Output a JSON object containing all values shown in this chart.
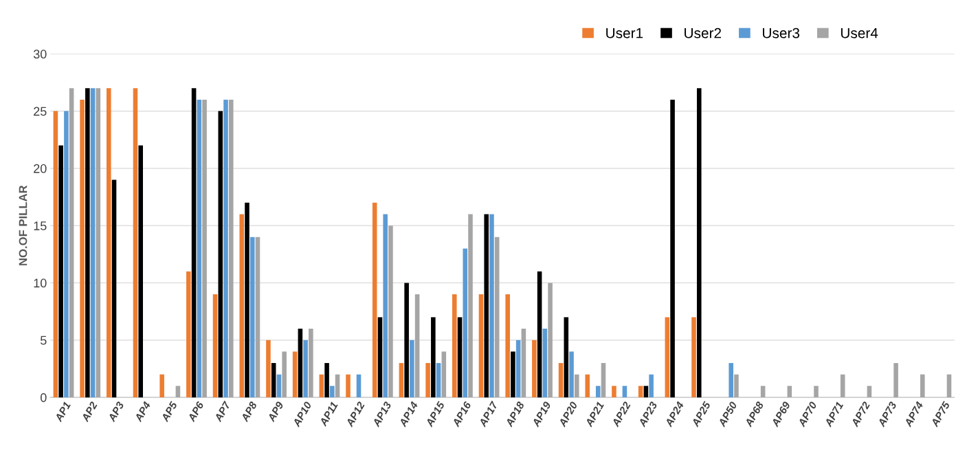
{
  "chart_data": {
    "type": "bar",
    "ylabel": "NO.OF PILLAR",
    "categories": [
      "AP1",
      "AP2",
      "AP3",
      "AP4",
      "AP5",
      "AP6",
      "AP7",
      "AP8",
      "AP9",
      "AP10",
      "AP11",
      "AP12",
      "AP13",
      "AP14",
      "AP15",
      "AP16",
      "AP17",
      "AP18",
      "AP19",
      "AP20",
      "AP21",
      "AP22",
      "AP23",
      "AP24",
      "AP25",
      "AP50",
      "AP68",
      "AP69",
      "AP70",
      "AP71",
      "AP72",
      "AP73",
      "AP74",
      "AP75"
    ],
    "series": [
      {
        "name": "User1",
        "color": "#ed7d31",
        "values": [
          25,
          26,
          27,
          27,
          2,
          11,
          9,
          16,
          5,
          4,
          2,
          2,
          17,
          3,
          3,
          9,
          9,
          9,
          5,
          3,
          2,
          1,
          1,
          7,
          7,
          0,
          0,
          0,
          0,
          0,
          0,
          0,
          0,
          0
        ]
      },
      {
        "name": "User2",
        "color": "#000000",
        "values": [
          22,
          27,
          19,
          22,
          0,
          27,
          25,
          17,
          3,
          6,
          3,
          0,
          7,
          10,
          7,
          7,
          16,
          4,
          11,
          7,
          0,
          0,
          1,
          26,
          27,
          0,
          0,
          0,
          0,
          0,
          0,
          0,
          0,
          0
        ]
      },
      {
        "name": "User3",
        "color": "#5b9bd5",
        "values": [
          25,
          27,
          0,
          0,
          0,
          26,
          26,
          14,
          2,
          5,
          1,
          2,
          16,
          5,
          3,
          13,
          16,
          5,
          6,
          4,
          1,
          1,
          2,
          0,
          0,
          3,
          0,
          0,
          0,
          0,
          0,
          0,
          0,
          0
        ]
      },
      {
        "name": "User4",
        "color": "#a5a5a5",
        "values": [
          27,
          27,
          0,
          0,
          1,
          26,
          26,
          14,
          4,
          6,
          2,
          0,
          15,
          9,
          4,
          16,
          14,
          6,
          10,
          2,
          3,
          0,
          0,
          0,
          0,
          2,
          1,
          1,
          1,
          2,
          1,
          3,
          2,
          2
        ]
      }
    ],
    "ylim": [
      0,
      30
    ],
    "yticks": [
      0,
      5,
      10,
      15,
      20,
      25,
      30
    ],
    "grid": "y",
    "legend": "top right"
  }
}
